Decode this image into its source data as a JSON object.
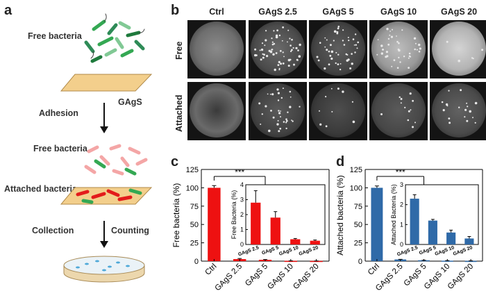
{
  "panel_letters": {
    "a": "a",
    "b": "b",
    "c": "c",
    "d": "d"
  },
  "schematic": {
    "free_bacteria_top": "Free bacteria",
    "surface_label": "GAgS",
    "adhesion": "Adhesion",
    "free_bacteria_mid": "Free bacteria",
    "attached_bacteria": "Attached bacteria",
    "collection": "Collection",
    "counting": "Counting"
  },
  "plates": {
    "columns": [
      "Ctrl",
      "GAgS 2.5",
      "GAgS 5",
      "GAgS 10",
      "GAgS 20"
    ],
    "rows": [
      "Free",
      "Attached"
    ]
  },
  "colors": {
    "free_bar": "#ee1111",
    "attached_bar": "#2f6aa8",
    "plate_bg": "#141414"
  },
  "chart_data": [
    {
      "panel": "c",
      "type": "bar",
      "categories": [
        "Ctrl",
        "GAgS 2.5",
        "GAgS 5",
        "GAgS 10",
        "GAgS 20"
      ],
      "values": [
        100,
        2.8,
        1.8,
        0.35,
        0.25
      ],
      "errors": [
        3,
        0.8,
        0.4,
        0.05,
        0.05
      ],
      "ylabel": "Free bacteria (%)",
      "ylim": [
        0,
        125
      ],
      "yticks": [
        0,
        25,
        50,
        75,
        100,
        125
      ],
      "significance": "***",
      "color": "#ee1111",
      "inset": {
        "categories": [
          "GAgS 2.5",
          "GAgS 5",
          "GAgS 10",
          "GAgS 20"
        ],
        "values": [
          2.8,
          1.8,
          0.35,
          0.25
        ],
        "errors": [
          0.8,
          0.4,
          0.05,
          0.05
        ],
        "ylabel": "Free Bacteria (%)",
        "ylim": [
          0,
          4
        ],
        "yticks": [
          0,
          1,
          2,
          3,
          4
        ]
      }
    },
    {
      "panel": "d",
      "type": "bar",
      "categories": [
        "Ctrl",
        "GAgS 2.5",
        "GAgS 5",
        "GAgS 10",
        "GAgS 20"
      ],
      "values": [
        100,
        2.3,
        1.2,
        0.6,
        0.3
      ],
      "errors": [
        2.5,
        0.2,
        0.06,
        0.12,
        0.1
      ],
      "ylabel": "Attached bacteria (%)",
      "ylim": [
        0,
        125
      ],
      "yticks": [
        0,
        25,
        50,
        75,
        100,
        125
      ],
      "significance": "***",
      "color": "#2f6aa8",
      "inset": {
        "categories": [
          "GAgS 2.5",
          "GAgS 5",
          "GAgS 10",
          "GAgS 20"
        ],
        "values": [
          2.3,
          1.2,
          0.6,
          0.3
        ],
        "errors": [
          0.2,
          0.06,
          0.12,
          0.1
        ],
        "ylabel": "Attached Bacteria (%)",
        "ylim": [
          0,
          3
        ],
        "yticks": [
          0,
          1,
          2,
          3
        ]
      }
    }
  ]
}
